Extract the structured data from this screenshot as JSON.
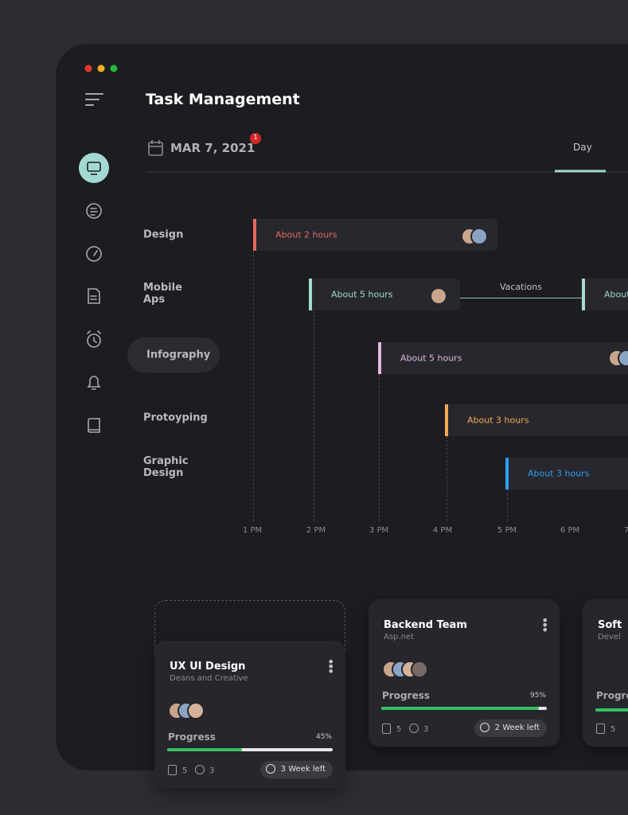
{
  "header": {
    "title": "Task Management",
    "date": "MAR 7, 2021",
    "notification_count": "1",
    "tab": "Day"
  },
  "timeline": {
    "rows": [
      {
        "label": "Design",
        "task": "About 2 hours",
        "color": "#e3695f"
      },
      {
        "label": "Mobile Aps",
        "task": "About 5 hours",
        "event": "Vacations",
        "next_task": "About",
        "color": "#a3dcd4"
      },
      {
        "label": "Infography",
        "task": "About 5 hours",
        "color": "#e6b6e2"
      },
      {
        "label": "Protoyping",
        "task": "About 3 hours",
        "color": "#f3aa55"
      },
      {
        "label": "Graphic Design",
        "task": "About 3 hours",
        "color": "#2c9ef0"
      }
    ],
    "hours": [
      "1 PM",
      "2 PM",
      "3 PM",
      "4 PM",
      "5 PM",
      "6 PM",
      "7"
    ]
  },
  "cards": [
    {
      "title": "UX UI Design",
      "subtitle": "Deans and Creative",
      "progress_title": "Progress",
      "progress": 45,
      "progress_label": "45%",
      "files": "5",
      "comments": "3",
      "deadline": "3 Week left"
    },
    {
      "title": "Backend Team",
      "subtitle": "Asp.net",
      "progress_title": "Progress",
      "progress": 95,
      "progress_label": "95%",
      "files": "5",
      "comments": "3",
      "deadline": "2 Week left"
    },
    {
      "title": "Soft",
      "subtitle": "Devel",
      "progress_title": "Progre",
      "files": "5"
    }
  ]
}
